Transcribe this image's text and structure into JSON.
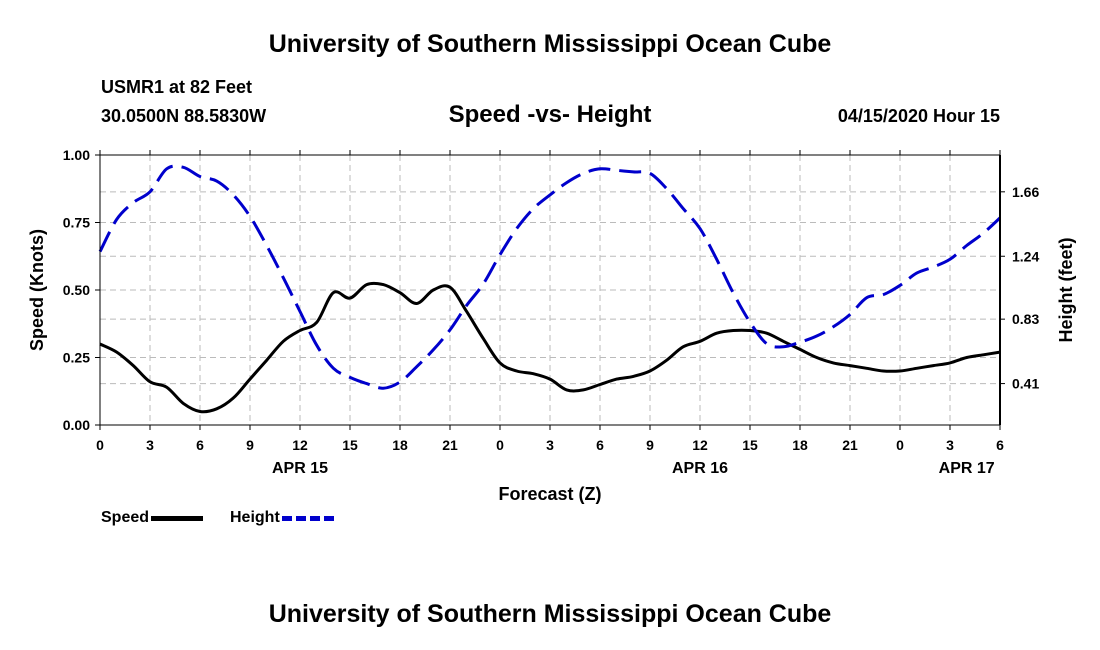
{
  "header": {
    "title": "University of Southern Mississippi Ocean Cube",
    "station": "USMR1 at 82 Feet",
    "coordinates": "30.0500N 88.5830W",
    "chart_title": "Speed -vs- Height",
    "date": "04/15/2020 Hour 15"
  },
  "footer": {
    "title": "University of Southern Mississippi Ocean Cube"
  },
  "legend": {
    "speed_label": "Speed",
    "height_label": "Height"
  },
  "colors": {
    "speed": "#000000",
    "height": "#0000cc",
    "grid": "#bbbbbb"
  },
  "chart_data": {
    "type": "line",
    "title": "Speed -vs- Height",
    "xlabel": "Forecast (Z)",
    "ylabel_left": "Speed (Knots)",
    "ylabel_right": "Height (feet)",
    "x_unit": "hours since 2020-04-15 00Z",
    "xlim": [
      0,
      54
    ],
    "ylim_left": [
      0,
      1
    ],
    "ylim_right": [
      0.14,
      1.9
    ],
    "x_ticks": [
      0,
      3,
      6,
      9,
      12,
      15,
      18,
      21,
      24,
      27,
      30,
      33,
      36,
      39,
      42,
      45,
      48,
      51,
      54
    ],
    "x_tick_labels": [
      "0",
      "3",
      "6",
      "9",
      "12",
      "15",
      "18",
      "21",
      "0",
      "3",
      "6",
      "9",
      "12",
      "15",
      "18",
      "21",
      "0",
      "3",
      "6"
    ],
    "y_ticks_left": [
      0,
      0.25,
      0.5,
      0.75,
      1
    ],
    "y_tick_labels_left": [
      "0.00",
      "0.25",
      "0.50",
      "0.75",
      "1.00"
    ],
    "y_ticks_right": [
      0.41,
      0.83,
      1.24,
      1.66
    ],
    "y_tick_labels_right": [
      "0.41",
      "0.83",
      "1.24",
      "1.66"
    ],
    "day_labels": [
      {
        "x": 12,
        "label": "APR 15"
      },
      {
        "x": 36,
        "label": "APR 16"
      },
      {
        "x": 52,
        "label": "APR 17"
      }
    ],
    "grid": true,
    "legend_position": "bottom-left",
    "series": [
      {
        "name": "Speed",
        "axis": "left",
        "style": "solid",
        "x": [
          0,
          1,
          2,
          3,
          4,
          5,
          6,
          7,
          8,
          9,
          10,
          11,
          12,
          13,
          14,
          15,
          16,
          17,
          18,
          19,
          20,
          21,
          22,
          23,
          24,
          25,
          26,
          27,
          28,
          29,
          30,
          31,
          32,
          33,
          34,
          35,
          36,
          37,
          38,
          39,
          40,
          41,
          42,
          43,
          44,
          45,
          46,
          47,
          48,
          49,
          50,
          51,
          52,
          53,
          54
        ],
        "values": [
          0.3,
          0.27,
          0.22,
          0.16,
          0.14,
          0.08,
          0.05,
          0.06,
          0.1,
          0.17,
          0.24,
          0.31,
          0.35,
          0.38,
          0.49,
          0.47,
          0.52,
          0.52,
          0.49,
          0.45,
          0.5,
          0.51,
          0.42,
          0.32,
          0.23,
          0.2,
          0.19,
          0.17,
          0.13,
          0.13,
          0.15,
          0.17,
          0.18,
          0.2,
          0.24,
          0.29,
          0.31,
          0.34,
          0.35,
          0.35,
          0.34,
          0.31,
          0.28,
          0.25,
          0.23,
          0.22,
          0.21,
          0.2,
          0.2,
          0.21,
          0.22,
          0.23,
          0.25,
          0.26,
          0.27
        ]
      },
      {
        "name": "Height",
        "axis": "right",
        "style": "dashed",
        "x": [
          0,
          1,
          2,
          3,
          4,
          5,
          6,
          7,
          8,
          9,
          10,
          11,
          12,
          13,
          14,
          15,
          16,
          17,
          18,
          19,
          20,
          21,
          22,
          23,
          24,
          25,
          26,
          27,
          28,
          29,
          30,
          31,
          32,
          33,
          34,
          35,
          36,
          37,
          38,
          39,
          40,
          41,
          42,
          43,
          44,
          45,
          46,
          47,
          48,
          49,
          50,
          51,
          52,
          53,
          54
        ],
        "values": [
          1.27,
          1.48,
          1.59,
          1.66,
          1.81,
          1.82,
          1.76,
          1.73,
          1.64,
          1.5,
          1.31,
          1.1,
          0.88,
          0.66,
          0.51,
          0.45,
          0.41,
          0.38,
          0.42,
          0.52,
          0.63,
          0.76,
          0.92,
          1.06,
          1.25,
          1.42,
          1.55,
          1.64,
          1.72,
          1.78,
          1.81,
          1.8,
          1.79,
          1.78,
          1.68,
          1.55,
          1.42,
          1.22,
          1.0,
          0.81,
          0.67,
          0.65,
          0.68,
          0.72,
          0.78,
          0.86,
          0.97,
          0.99,
          1.05,
          1.13,
          1.17,
          1.22,
          1.31,
          1.39,
          1.49
        ]
      }
    ]
  }
}
